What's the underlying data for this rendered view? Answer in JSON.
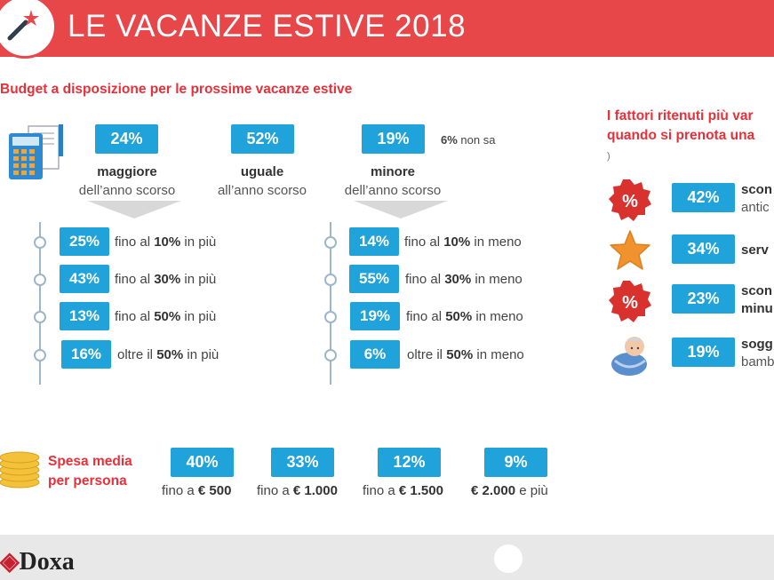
{
  "header": {
    "title": "LE VACANZE ESTIVE 2018"
  },
  "budget": {
    "title": "Budget a disposizione per le prossime vacanze estive",
    "summary": [
      {
        "value": "24%",
        "label": "maggiore",
        "sub": "dell’anno scorso"
      },
      {
        "value": "52%",
        "label": "uguale",
        "sub": "all’anno scorso"
      },
      {
        "value": "19%",
        "label": "minore",
        "sub": "dell’anno scorso"
      }
    ],
    "nonsa": {
      "value": "6%",
      "text": "non sa"
    },
    "more": [
      {
        "value": "25%",
        "pre": "fino al ",
        "bold": "10%",
        "post": " in più"
      },
      {
        "value": "43%",
        "pre": "fino al ",
        "bold": "30%",
        "post": " in più"
      },
      {
        "value": "13%",
        "pre": "fino al ",
        "bold": "50%",
        "post": " in più"
      },
      {
        "value": "16%",
        "pre": "oltre il ",
        "bold": "50%",
        "post": " in più"
      }
    ],
    "less": [
      {
        "value": "14%",
        "pre": "fino al ",
        "bold": "10%",
        "post": " in meno"
      },
      {
        "value": "55%",
        "pre": "fino al ",
        "bold": "30%",
        "post": " in meno"
      },
      {
        "value": "19%",
        "pre": "fino al ",
        "bold": "50%",
        "post": " in meno"
      },
      {
        "value": "6%",
        "pre": "oltre il ",
        "bold": "50%",
        "post": " in meno"
      }
    ]
  },
  "spesa": {
    "title1": "Spesa media",
    "title2": "per persona",
    "items": [
      {
        "value": "40%",
        "pre": "fino a ",
        "bold": "€ 500",
        "post": ""
      },
      {
        "value": "33%",
        "pre": "fino a ",
        "bold": "€ 1.000",
        "post": ""
      },
      {
        "value": "12%",
        "pre": "fino a ",
        "bold": "€ 1.500",
        "post": ""
      },
      {
        "value": "9%",
        "pre": "",
        "bold": "€ 2.000",
        "post": " e più"
      }
    ]
  },
  "fattori": {
    "title1": "I fattori ritenuti più var",
    "title2": "quando si prenota una",
    "note": ")",
    "items": [
      {
        "value": "42%",
        "line1": "scon",
        "line2": "antic",
        "icon": "percent-badge-icon"
      },
      {
        "value": "34%",
        "line1": "serv",
        "line2": "",
        "icon": "star-icon"
      },
      {
        "value": "23%",
        "line1": "scon",
        "line2": "minu",
        "icon": "percent-badge-icon"
      },
      {
        "value": "19%",
        "line1": "sogg",
        "line2": "bamb",
        "icon": "baby-icon"
      }
    ]
  },
  "footer": {
    "brand": "Doxa"
  },
  "colors": {
    "accent": "#e8474a",
    "pill": "#1fa3da",
    "title_red": "#e8303a",
    "star": "#f0922e"
  }
}
